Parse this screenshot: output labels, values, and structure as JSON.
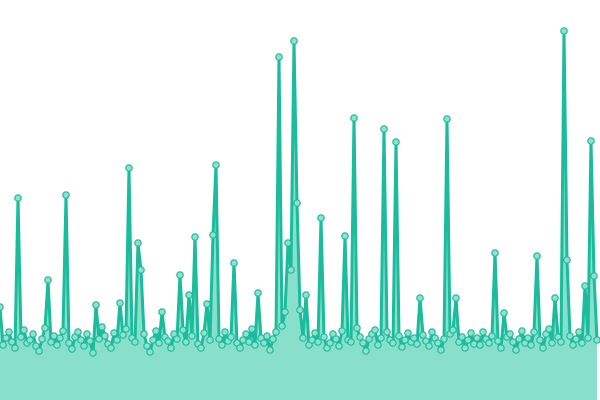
{
  "chart_data": {
    "type": "area",
    "title": "",
    "xlabel": "",
    "ylabel": "",
    "axes_visible": false,
    "grid": false,
    "markers": true,
    "ylim": [
      0,
      400
    ],
    "colors": {
      "line": "#1abc9c",
      "area": "#88dfcc",
      "marker_fill": "#8fe0cc"
    },
    "values": [
      93,
      55,
      62,
      68,
      58,
      52,
      202,
      63,
      70,
      57,
      60,
      66,
      54,
      49,
      61,
      72,
      120,
      58,
      64,
      55,
      62,
      69,
      205,
      57,
      51,
      63,
      68,
      60,
      54,
      66,
      59,
      47,
      95,
      61,
      73,
      64,
      56,
      52,
      67,
      60,
      97,
      65,
      71,
      232,
      62,
      58,
      157,
      130,
      66,
      54,
      48,
      60,
      69,
      57,
      88,
      63,
      59,
      52,
      66,
      61,
      125,
      70,
      58,
      105,
      64,
      163,
      56,
      52,
      67,
      96,
      60,
      165,
      235,
      61,
      55,
      68,
      59,
      63,
      137,
      57,
      52,
      60,
      66,
      58,
      71,
      55,
      107,
      62,
      57,
      64,
      50,
      61,
      68,
      343,
      74,
      88,
      157,
      130,
      359,
      197,
      90,
      62,
      105,
      55,
      60,
      67,
      58,
      182,
      63,
      52,
      57,
      66,
      61,
      54,
      69,
      164,
      60,
      58,
      282,
      72,
      63,
      57,
      49,
      61,
      66,
      70,
      55,
      62,
      271,
      68,
      60,
      57,
      258,
      64,
      53,
      60,
      67,
      58,
      62,
      56,
      102,
      65,
      59,
      54,
      68,
      62,
      57,
      50,
      61,
      281,
      66,
      70,
      102,
      58,
      63,
      52,
      60,
      67,
      56,
      62,
      55,
      68,
      61,
      57,
      64,
      147,
      59,
      52,
      87,
      63,
      66,
      58,
      50,
      61,
      69,
      57,
      62,
      55,
      68,
      144,
      60,
      52,
      66,
      71,
      57,
      102,
      63,
      58,
      369,
      140,
      64,
      55,
      61,
      68,
      57,
      114,
      62,
      259,
      124,
      60
    ]
  }
}
